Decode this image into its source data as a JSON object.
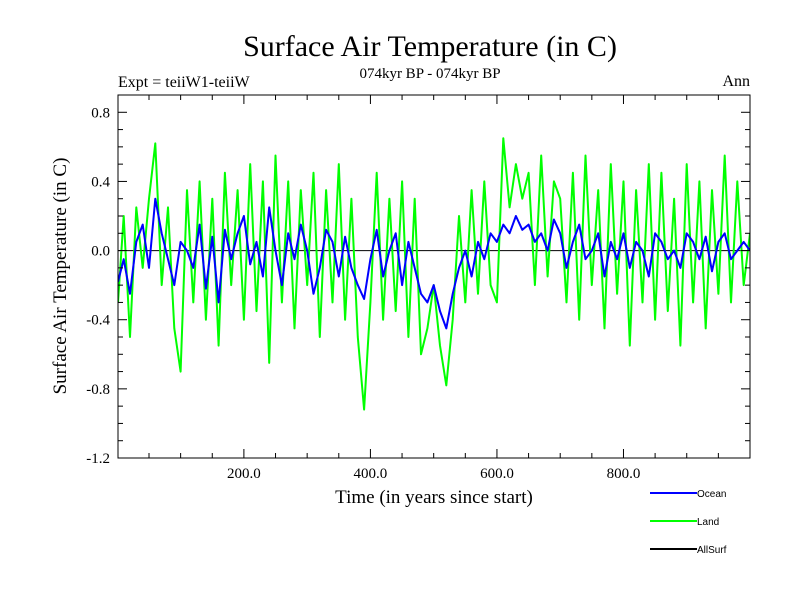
{
  "chart_data": {
    "type": "line",
    "title": "Surface Air Temperature (in C)",
    "subtitle": "074kyr BP - 074kyr BP",
    "left_label": "Expt = teiiW1-teiiW",
    "right_label": "Ann",
    "xlabel": "Time (in years since start)",
    "ylabel": "Surface Air Temperature (in C)",
    "xlim": [
      1,
      1000
    ],
    "ylim": [
      -1.2,
      0.9
    ],
    "x_ticks": [
      200,
      400,
      600,
      800
    ],
    "x_tick_labels": [
      "200.0",
      "400.0",
      "600.0",
      "800.0"
    ],
    "y_ticks": [
      -1.2,
      -0.8,
      -0.4,
      0.0,
      0.4,
      0.8
    ],
    "y_tick_labels": [
      "-1.2",
      "-0.8",
      "-0.4",
      "0.0",
      "0.4",
      "0.8"
    ],
    "zero_line": true,
    "legend_position": "bottom-right",
    "series": [
      {
        "name": "Ocean",
        "color": "#0000ff",
        "x": [
          1,
          10,
          20,
          30,
          40,
          50,
          60,
          70,
          80,
          90,
          100,
          110,
          120,
          130,
          140,
          150,
          160,
          170,
          180,
          190,
          200,
          210,
          220,
          230,
          240,
          250,
          260,
          270,
          280,
          290,
          300,
          310,
          320,
          330,
          340,
          350,
          360,
          370,
          380,
          390,
          400,
          410,
          420,
          430,
          440,
          450,
          460,
          470,
          480,
          490,
          500,
          510,
          520,
          530,
          540,
          550,
          560,
          570,
          580,
          590,
          600,
          610,
          620,
          630,
          640,
          650,
          660,
          670,
          680,
          690,
          700,
          710,
          720,
          730,
          740,
          750,
          760,
          770,
          780,
          790,
          800,
          810,
          820,
          830,
          840,
          850,
          860,
          870,
          880,
          890,
          900,
          910,
          920,
          930,
          940,
          950,
          960,
          970,
          980,
          990,
          1000
        ],
        "values": [
          -0.18,
          -0.05,
          -0.25,
          0.05,
          0.15,
          -0.1,
          0.3,
          0.1,
          -0.05,
          -0.2,
          0.05,
          0.0,
          -0.1,
          0.15,
          -0.22,
          0.08,
          -0.3,
          0.12,
          -0.05,
          0.1,
          0.2,
          -0.08,
          0.05,
          -0.15,
          0.25,
          0.0,
          -0.2,
          0.1,
          -0.05,
          0.15,
          0.0,
          -0.25,
          -0.1,
          0.12,
          0.05,
          -0.15,
          0.08,
          -0.1,
          -0.2,
          -0.28,
          -0.05,
          0.12,
          -0.15,
          0.0,
          0.1,
          -0.2,
          0.05,
          -0.1,
          -0.25,
          -0.3,
          -0.2,
          -0.35,
          -0.45,
          -0.25,
          -0.1,
          0.0,
          -0.15,
          0.05,
          -0.05,
          0.1,
          0.05,
          0.15,
          0.1,
          0.2,
          0.12,
          0.15,
          0.05,
          0.1,
          0.0,
          0.18,
          0.1,
          -0.1,
          0.05,
          0.15,
          -0.05,
          0.0,
          0.1,
          -0.15,
          0.05,
          -0.05,
          0.1,
          -0.1,
          0.05,
          0.0,
          -0.15,
          0.1,
          0.05,
          -0.05,
          0.0,
          -0.1,
          0.1,
          0.05,
          -0.05,
          0.08,
          -0.12,
          0.05,
          0.1,
          -0.05,
          0.0,
          0.05,
          0.0
        ]
      },
      {
        "name": "Land",
        "color": "#00ff00",
        "x": [
          1,
          10,
          20,
          30,
          40,
          50,
          60,
          70,
          80,
          90,
          100,
          110,
          120,
          130,
          140,
          150,
          160,
          170,
          180,
          190,
          200,
          210,
          220,
          230,
          240,
          250,
          260,
          270,
          280,
          290,
          300,
          310,
          320,
          330,
          340,
          350,
          360,
          370,
          380,
          390,
          400,
          410,
          420,
          430,
          440,
          450,
          460,
          470,
          480,
          490,
          500,
          510,
          520,
          530,
          540,
          550,
          560,
          570,
          580,
          590,
          600,
          610,
          620,
          630,
          640,
          650,
          660,
          670,
          680,
          690,
          700,
          710,
          720,
          730,
          740,
          750,
          760,
          770,
          780,
          790,
          800,
          810,
          820,
          830,
          840,
          850,
          860,
          870,
          880,
          890,
          900,
          910,
          920,
          930,
          940,
          950,
          960,
          970,
          980,
          990,
          1000
        ],
        "values": [
          -0.3,
          0.2,
          -0.5,
          0.25,
          -0.1,
          0.3,
          0.62,
          -0.2,
          0.25,
          -0.45,
          -0.7,
          0.35,
          -0.3,
          0.4,
          -0.4,
          0.3,
          -0.55,
          0.45,
          -0.2,
          0.35,
          -0.4,
          0.5,
          -0.35,
          0.4,
          -0.65,
          0.55,
          -0.3,
          0.4,
          -0.45,
          0.35,
          -0.2,
          0.45,
          -0.5,
          0.35,
          -0.3,
          0.5,
          -0.4,
          0.3,
          -0.5,
          -0.92,
          -0.3,
          0.45,
          -0.4,
          0.3,
          -0.35,
          0.4,
          -0.5,
          0.3,
          -0.6,
          -0.45,
          -0.2,
          -0.55,
          -0.78,
          -0.4,
          0.2,
          -0.3,
          0.35,
          -0.25,
          0.4,
          -0.2,
          -0.3,
          0.65,
          0.25,
          0.5,
          0.3,
          0.45,
          -0.2,
          0.55,
          -0.15,
          0.4,
          0.3,
          -0.3,
          0.45,
          -0.4,
          0.55,
          -0.2,
          0.35,
          -0.45,
          0.5,
          -0.25,
          0.4,
          -0.55,
          0.35,
          -0.3,
          0.5,
          -0.4,
          0.45,
          -0.35,
          0.3,
          -0.55,
          0.5,
          -0.3,
          0.4,
          -0.45,
          0.35,
          -0.25,
          0.55,
          -0.3,
          0.4,
          -0.2,
          0.1
        ]
      },
      {
        "name": "AllSurf",
        "color": "#000000",
        "x": [],
        "values": []
      }
    ]
  }
}
